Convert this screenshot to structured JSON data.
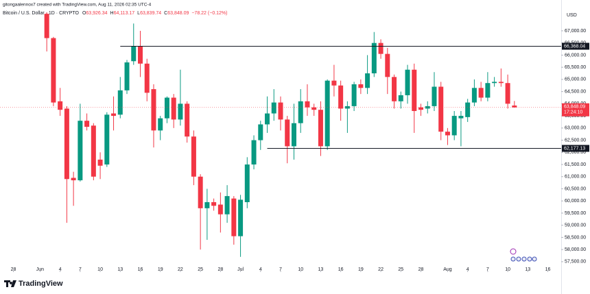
{
  "header": {
    "credit": "gitongaalennox7 created with TradingView.com, Aug 11, 2026 02:35 UTC-4",
    "symbol": "Bitcoin / U.S. Dollar · 1D · CRYPTO",
    "legend_keys": [
      "O",
      "H",
      "L",
      "C"
    ],
    "legend_values": [
      "63,926.34",
      "64,113.17",
      "63,839.74",
      "63,848.09"
    ],
    "change": "−78.22 (−0.12%)",
    "currency": "USD",
    "brand": "TradingView"
  },
  "chart_data": {
    "type": "candlestick",
    "up_color": "#089981",
    "down_color": "#f23645",
    "dates": [
      "2026-06-02",
      "2026-06-03",
      "2026-06-04",
      "2026-06-05",
      "2026-06-06",
      "2026-06-07",
      "2026-06-08",
      "2026-06-09",
      "2026-06-10",
      "2026-06-11",
      "2026-06-12",
      "2026-06-13",
      "2026-06-14",
      "2026-06-15",
      "2026-06-16",
      "2026-06-17",
      "2026-06-18",
      "2026-06-19",
      "2026-06-20",
      "2026-06-21",
      "2026-06-22",
      "2026-06-23",
      "2026-06-24",
      "2026-06-25",
      "2026-06-26",
      "2026-06-27",
      "2026-06-28",
      "2026-06-29",
      "2026-06-30",
      "2026-07-01",
      "2026-07-02",
      "2026-07-03",
      "2026-07-04",
      "2026-07-05",
      "2026-07-06",
      "2026-07-07",
      "2026-07-08",
      "2026-07-09",
      "2026-07-10",
      "2026-07-11",
      "2026-07-12",
      "2026-07-13",
      "2026-07-14",
      "2026-07-15",
      "2026-07-16",
      "2026-07-17",
      "2026-07-18",
      "2026-07-19",
      "2026-07-20",
      "2026-07-21",
      "2026-07-22",
      "2026-07-23",
      "2026-07-24",
      "2026-07-25",
      "2026-07-26",
      "2026-07-27",
      "2026-07-28",
      "2026-07-29",
      "2026-07-30",
      "2026-07-31",
      "2026-08-01",
      "2026-08-02",
      "2026-08-03",
      "2026-08-04",
      "2026-08-05",
      "2026-08-06",
      "2026-08-07",
      "2026-08-08",
      "2026-08-09",
      "2026-08-10",
      "2026-08-11"
    ],
    "open": [
      67700,
      66700,
      64100,
      63800,
      60950,
      60850,
      63300,
      63100,
      61700,
      61500,
      63600,
      63550,
      64550,
      65750,
      66350,
      65650,
      64600,
      62900,
      63400,
      64250,
      63350,
      64000,
      62650,
      61000,
      59700,
      59950,
      59850,
      59450,
      60100,
      58550,
      59950,
      61500,
      62500,
      63150,
      63600,
      64050,
      63350,
      62250,
      63200,
      64100,
      63850,
      63750,
      62250,
      64950,
      64750,
      63800,
      63900,
      64800,
      64650,
      65250,
      66500,
      66050,
      65100,
      64100,
      64350,
      65400,
      63850,
      63800,
      63900,
      64700,
      62850,
      62700,
      63400,
      63450,
      64050,
      64650,
      64250,
      64850,
      64900,
      64850,
      63926.34
    ],
    "high": [
      67760,
      66750,
      64650,
      63900,
      61200,
      64000,
      63600,
      63200,
      62000,
      63650,
      64300,
      65100,
      65800,
      67300,
      67000,
      65850,
      64800,
      63500,
      64300,
      64400,
      65400,
      64100,
      62900,
      61100,
      60500,
      60100,
      60350,
      60650,
      60200,
      60250,
      61800,
      62700,
      63300,
      64300,
      64600,
      64300,
      63500,
      64000,
      64600,
      64800,
      64000,
      64100,
      65000,
      65600,
      64950,
      64100,
      64900,
      65000,
      66000,
      66950,
      66650,
      66300,
      65200,
      64500,
      65600,
      65650,
      64000,
      64100,
      65300,
      64900,
      63000,
      63700,
      63700,
      64200,
      65000,
      64900,
      65300,
      65100,
      65450,
      65200,
      64113.17
    ],
    "low": [
      66150,
      63900,
      63500,
      59100,
      59800,
      60800,
      62900,
      60850,
      60900,
      61400,
      62900,
      63400,
      64400,
      65600,
      65100,
      64100,
      62200,
      62500,
      63200,
      63000,
      63100,
      62400,
      60650,
      58000,
      58400,
      59600,
      58700,
      59100,
      58200,
      57700,
      59700,
      61300,
      62100,
      62800,
      63300,
      62900,
      61550,
      61700,
      62800,
      63500,
      63500,
      61850,
      62100,
      64300,
      63300,
      62800,
      63700,
      64400,
      64400,
      65100,
      65850,
      64400,
      63800,
      63800,
      64000,
      62800,
      63500,
      63600,
      63700,
      62500,
      62300,
      62500,
      62250,
      63250,
      63900,
      64100,
      64100,
      64700,
      64700,
      63800,
      63839.74
    ],
    "close": [
      66700,
      64050,
      63750,
      60900,
      60850,
      63300,
      63050,
      61000,
      61450,
      63550,
      63500,
      64550,
      65700,
      66350,
      65650,
      64450,
      62900,
      63400,
      64250,
      63350,
      64000,
      62650,
      61000,
      59700,
      59950,
      59800,
      59450,
      60200,
      58550,
      60050,
      61500,
      62500,
      63150,
      63600,
      64050,
      63350,
      62250,
      63200,
      64100,
      63850,
      63750,
      62250,
      64950,
      64750,
      63800,
      63900,
      64800,
      64650,
      65250,
      66500,
      66050,
      65100,
      64100,
      64350,
      65400,
      63700,
      63750,
      63900,
      64700,
      62850,
      62700,
      63500,
      63500,
      64050,
      64650,
      64250,
      64850,
      64900,
      64850,
      64000,
      63848.09
    ],
    "xlim": [
      "2026-05-26",
      "2026-08-18"
    ],
    "xticks": [
      {
        "value": "2026-05-28",
        "label": "28"
      },
      {
        "value": "2026-06-01",
        "label": "Jun"
      },
      {
        "value": "2026-06-04",
        "label": "4"
      },
      {
        "value": "2026-06-07",
        "label": "7"
      },
      {
        "value": "2026-06-10",
        "label": "10"
      },
      {
        "value": "2026-06-13",
        "label": "13"
      },
      {
        "value": "2026-06-16",
        "label": "16"
      },
      {
        "value": "2026-06-19",
        "label": "19"
      },
      {
        "value": "2026-06-22",
        "label": "22"
      },
      {
        "value": "2026-06-25",
        "label": "25"
      },
      {
        "value": "2026-06-28",
        "label": "28"
      },
      {
        "value": "2026-07-01",
        "label": "Jul"
      },
      {
        "value": "2026-07-04",
        "label": "4"
      },
      {
        "value": "2026-07-07",
        "label": "7"
      },
      {
        "value": "2026-07-10",
        "label": "10"
      },
      {
        "value": "2026-07-13",
        "label": "13"
      },
      {
        "value": "2026-07-16",
        "label": "16"
      },
      {
        "value": "2026-07-19",
        "label": "19"
      },
      {
        "value": "2026-07-22",
        "label": "22"
      },
      {
        "value": "2026-07-25",
        "label": "25"
      },
      {
        "value": "2026-07-28",
        "label": "28"
      },
      {
        "value": "2026-08-01",
        "label": "Aug"
      },
      {
        "value": "2026-08-04",
        "label": "4"
      },
      {
        "value": "2026-08-07",
        "label": "7"
      },
      {
        "value": "2026-08-10",
        "label": "10"
      },
      {
        "value": "2026-08-13",
        "label": "13"
      },
      {
        "value": "2026-08-16",
        "label": "16"
      }
    ],
    "ylim": [
      57130,
      67760
    ],
    "yticks": [
      {
        "value": 57500,
        "label": "57,500.00"
      },
      {
        "value": 58000,
        "label": "58,000.00"
      },
      {
        "value": 58500,
        "label": "58,500.00"
      },
      {
        "value": 59000,
        "label": "59,000.00"
      },
      {
        "value": 59500,
        "label": "59,500.00"
      },
      {
        "value": 60000,
        "label": "60,000.00"
      },
      {
        "value": 60500,
        "label": "60,500.00"
      },
      {
        "value": 61000,
        "label": "61,000.00"
      },
      {
        "value": 61500,
        "label": "61,500.00"
      },
      {
        "value": 62000,
        "label": "62,000.00"
      },
      {
        "value": 62500,
        "label": "62,500.00"
      },
      {
        "value": 63000,
        "label": "63,000.00"
      },
      {
        "value": 63500,
        "label": "63,500.00"
      },
      {
        "value": 64000,
        "label": "64,000.00"
      },
      {
        "value": 64500,
        "label": "64,500.00"
      },
      {
        "value": 65000,
        "label": "65,000.00"
      },
      {
        "value": 65500,
        "label": "65,500.00"
      },
      {
        "value": 66000,
        "label": "66,000.00"
      },
      {
        "value": 66500,
        "label": "66,500.00"
      },
      {
        "value": 67000,
        "label": "67,000.00"
      }
    ],
    "hlines": [
      {
        "value": 66368.04,
        "label": "66,368.04",
        "start": "2026-06-13"
      },
      {
        "value": 62177.13,
        "label": "62,177.13",
        "start": "2026-07-05"
      }
    ],
    "last_price": {
      "value": 63848.09,
      "label": "63,848.09",
      "countdown": "17:24:10"
    }
  }
}
